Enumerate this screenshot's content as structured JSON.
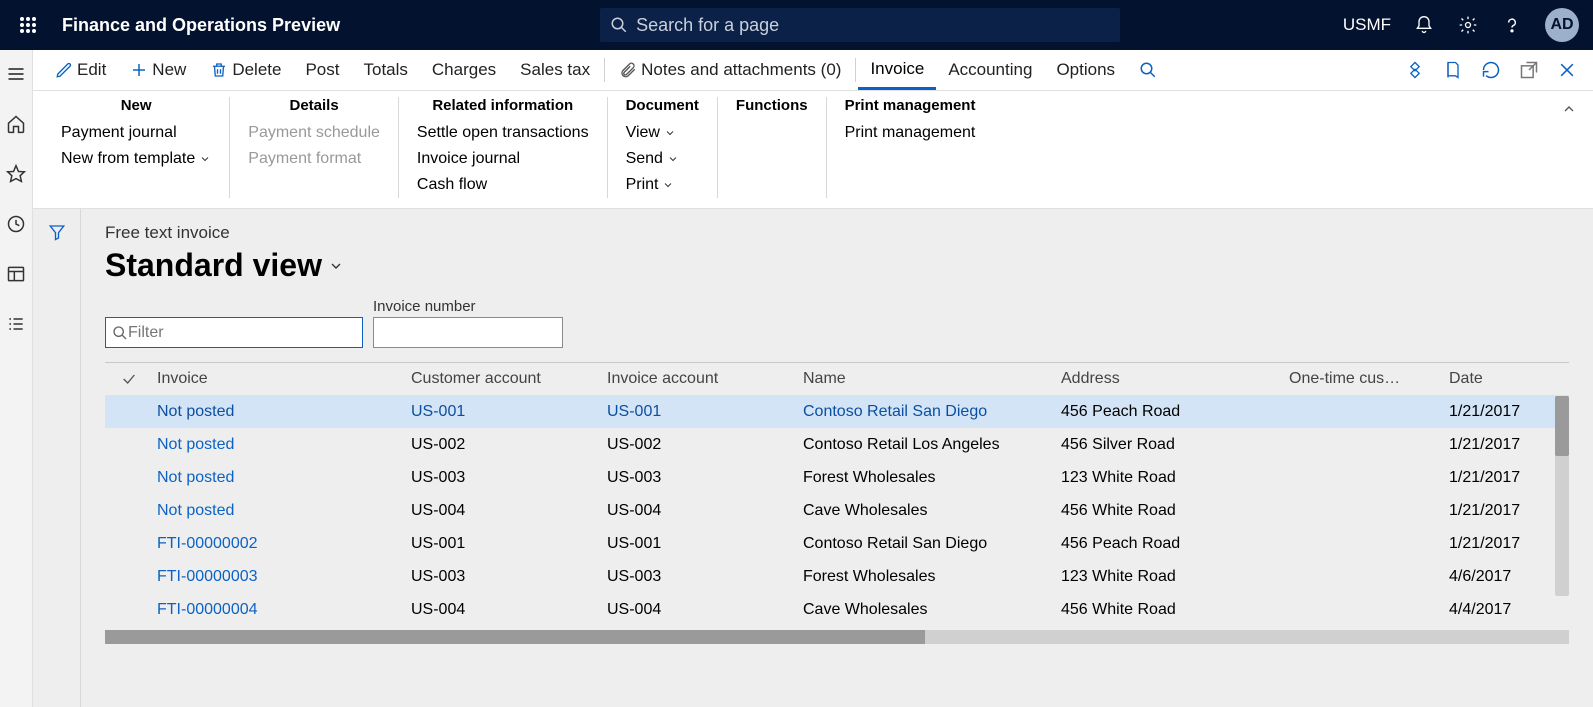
{
  "topnav": {
    "app_title": "Finance and Operations Preview",
    "search_placeholder": "Search for a page",
    "entity": "USMF",
    "avatar_initials": "AD"
  },
  "actionbar": {
    "edit": "Edit",
    "new": "New",
    "delete": "Delete",
    "post": "Post",
    "totals": "Totals",
    "charges": "Charges",
    "sales_tax": "Sales tax",
    "attachments": "Notes and attachments (0)",
    "invoice": "Invoice",
    "accounting": "Accounting",
    "options": "Options"
  },
  "ribbon": {
    "groups": [
      {
        "title": "New",
        "items": [
          {
            "label": "Payment journal"
          },
          {
            "label": "New from template",
            "chevron": true
          }
        ]
      },
      {
        "title": "Details",
        "items": [
          {
            "label": "Payment schedule",
            "disabled": true
          },
          {
            "label": "Payment format",
            "disabled": true
          }
        ]
      },
      {
        "title": "Related information",
        "items": [
          {
            "label": "Settle open transactions"
          },
          {
            "label": "Invoice journal"
          },
          {
            "label": "Cash flow"
          }
        ]
      },
      {
        "title": "Document",
        "items": [
          {
            "label": "View",
            "chevron": true
          },
          {
            "label": "Send",
            "chevron": true
          },
          {
            "label": "Print",
            "chevron": true
          }
        ]
      },
      {
        "title": "Functions",
        "items": []
      },
      {
        "title": "Print management",
        "items": [
          {
            "label": "Print management"
          }
        ]
      }
    ]
  },
  "page": {
    "breadcrumb": "Free text invoice",
    "view_title": "Standard view",
    "filter_placeholder": "Filter",
    "invoice_number_label": "Invoice number"
  },
  "grid": {
    "columns": [
      "Invoice",
      "Customer account",
      "Invoice account",
      "Name",
      "Address",
      "One-time cus…",
      "Date"
    ],
    "rows": [
      {
        "sel": true,
        "invoice": "Not posted",
        "cust": "US-001",
        "invacc": "US-001",
        "name": "Contoso Retail San Diego",
        "addr": "456 Peach Road",
        "date": "1/21/2017",
        "cust_link": true,
        "invacc_link": true,
        "name_link": true
      },
      {
        "sel": false,
        "invoice": "Not posted",
        "cust": "US-002",
        "invacc": "US-002",
        "name": "Contoso Retail Los Angeles",
        "addr": "456 Silver Road",
        "date": "1/21/2017"
      },
      {
        "sel": false,
        "invoice": "Not posted",
        "cust": "US-003",
        "invacc": "US-003",
        "name": "Forest Wholesales",
        "addr": "123 White Road",
        "date": "1/21/2017"
      },
      {
        "sel": false,
        "invoice": "Not posted",
        "cust": "US-004",
        "invacc": "US-004",
        "name": "Cave Wholesales",
        "addr": "456 White Road",
        "date": "1/21/2017"
      },
      {
        "sel": false,
        "invoice": "FTI-00000002",
        "cust": "US-001",
        "invacc": "US-001",
        "name": "Contoso Retail San Diego",
        "addr": "456 Peach Road",
        "date": "1/21/2017"
      },
      {
        "sel": false,
        "invoice": "FTI-00000003",
        "cust": "US-003",
        "invacc": "US-003",
        "name": "Forest Wholesales",
        "addr": "123 White Road",
        "date": "4/6/2017"
      },
      {
        "sel": false,
        "invoice": "FTI-00000004",
        "cust": "US-004",
        "invacc": "US-004",
        "name": "Cave Wholesales",
        "addr": "456 White Road",
        "date": "4/4/2017"
      }
    ]
  },
  "colors": {
    "navbar_bg": "#03122e",
    "search_bg": "#0c2147",
    "accent": "#0b62c4",
    "row_selected": "#d3e4f6",
    "content_bg": "#eeeeee"
  }
}
